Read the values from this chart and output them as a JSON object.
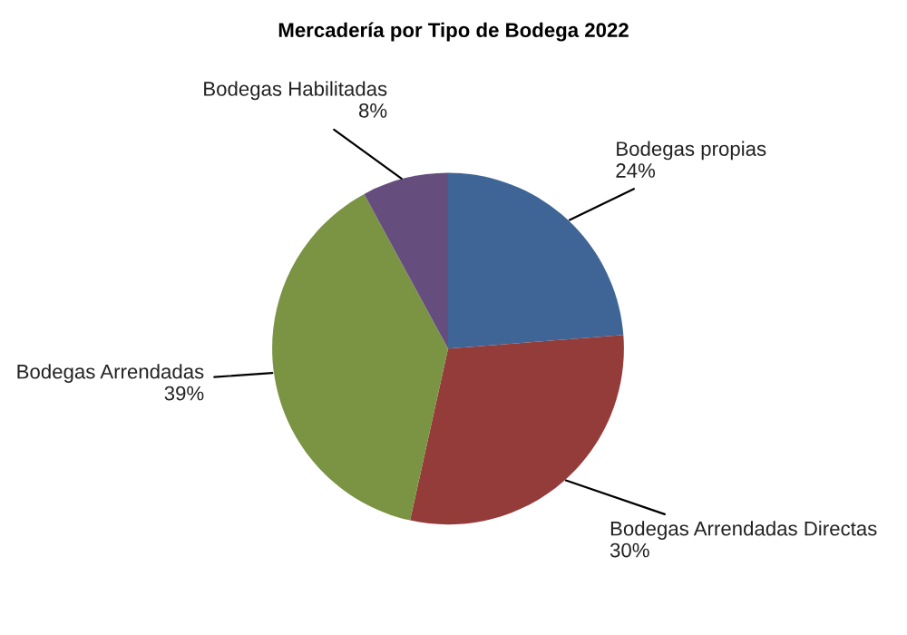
{
  "chart_data": {
    "type": "pie",
    "title": "Mercadería por Tipo de Bodega 2022",
    "categories": [
      "Bodegas propias",
      "Bodegas Arrendadas Directas",
      "Bodegas Arrendadas",
      "Bodegas Habilitadas"
    ],
    "values": [
      24,
      30,
      39,
      8
    ],
    "value_labels": [
      "24%",
      "30%",
      "39%",
      "8%"
    ],
    "colors": [
      "#3f6496",
      "#943c3a",
      "#7a9444",
      "#654d7e"
    ],
    "legend": false
  }
}
